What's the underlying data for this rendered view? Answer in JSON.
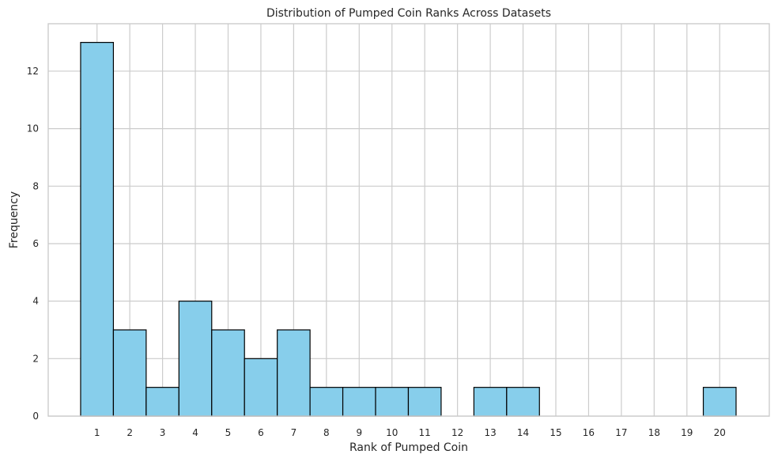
{
  "chart_data": {
    "type": "bar",
    "title": "Distribution of Pumped Coin Ranks Across Datasets",
    "xlabel": "Rank of Pumped Coin",
    "ylabel": "Frequency",
    "categories": [
      "1",
      "2",
      "3",
      "4",
      "5",
      "6",
      "7",
      "8",
      "9",
      "10",
      "11",
      "12",
      "13",
      "14",
      "15",
      "16",
      "17",
      "18",
      "19",
      "20"
    ],
    "values": [
      13,
      3,
      1,
      4,
      3,
      2,
      3,
      1,
      1,
      1,
      1,
      0,
      1,
      1,
      0,
      0,
      0,
      0,
      0,
      1
    ],
    "yticks": [
      0,
      2,
      4,
      6,
      8,
      10,
      12
    ],
    "ylim": [
      0,
      13.65
    ],
    "bar_color": "#87ceeb",
    "edge_color": "#000000",
    "grid": true
  }
}
